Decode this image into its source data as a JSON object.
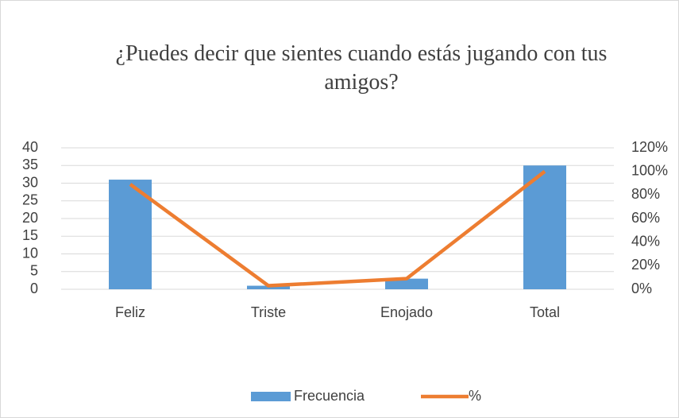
{
  "chart_data": {
    "type": "bar_line",
    "title": "¿Puedes decir que sientes cuando estás jugando con tus amigos?",
    "categories": [
      "Feliz",
      "Triste",
      "Enojado",
      "Total"
    ],
    "series": [
      {
        "name": "Frecuencia",
        "color": "#5b9bd5",
        "type": "bar",
        "values": [
          31,
          1,
          3,
          35
        ]
      },
      {
        "name": "%",
        "color": "#ed7d31",
        "type": "line",
        "axis": "y2",
        "values": [
          89,
          3,
          9,
          100
        ]
      }
    ],
    "ylim": [
      0,
      40
    ],
    "yticks": [
      0,
      5,
      10,
      15,
      20,
      25,
      30,
      35,
      40
    ],
    "y2lim": [
      0,
      120
    ],
    "y2ticks": [
      {
        "value": 0,
        "label": "0%"
      },
      {
        "value": 20,
        "label": "20%"
      },
      {
        "value": 40,
        "label": "40%"
      },
      {
        "value": 60,
        "label": "60%"
      },
      {
        "value": 80,
        "label": "80%"
      },
      {
        "value": 100,
        "label": "100%"
      },
      {
        "value": 120,
        "label": "120%"
      }
    ],
    "grid": true,
    "legend": "bottom"
  }
}
